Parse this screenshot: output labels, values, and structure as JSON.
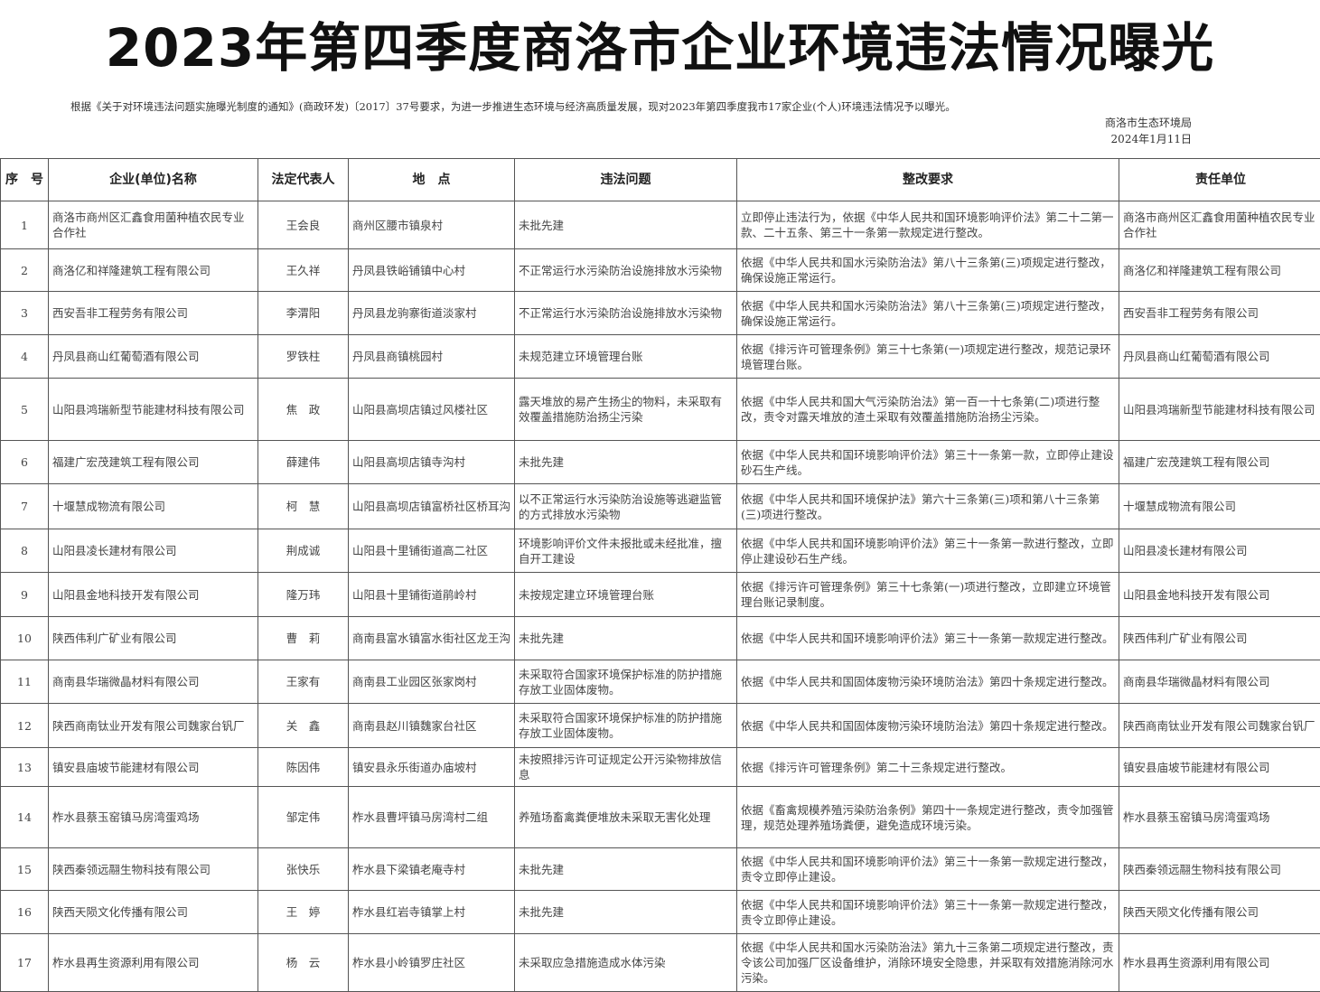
{
  "title": "2023年第四季度商洛市企业环境违法情况曝光",
  "intro": "根据《关于对环境违法问题实施曝光制度的通知》(商政环发)〔2017〕37号要求，为进一步推进生态环境与经济高质量发展，现对2023年第四季度我市17家企业(个人)环境违法情况予以曝光。",
  "org": "商洛市生态环境局",
  "date": "2024年1月11日",
  "headers": [
    "序　号",
    "企业(单位)名称",
    "法定代表人",
    "地　点",
    "违法问题",
    "整改要求",
    "责任单位"
  ],
  "rows": [
    [
      "1",
      "商洛市商州区汇鑫食用菌种植农民专业合作社",
      "王会良",
      "商州区腰市镇泉村",
      "未批先建",
      "立即停止违法行为，依据《中华人民共和国环境影响评价法》第二十二第一款、二十五条、第三十一条第一款规定进行整改。",
      "商洛市商州区汇鑫食用菌种植农民专业合作社"
    ],
    [
      "2",
      "商洛亿和祥隆建筑工程有限公司",
      "王久祥",
      "丹凤县铁峪铺镇中心村",
      "不正常运行水污染防治设施排放水污染物",
      "依据《中华人民共和国水污染防治法》第八十三条第(三)项规定进行整改，确保设施正常运行。",
      "商洛亿和祥隆建筑工程有限公司"
    ],
    [
      "3",
      "西安吾非工程劳务有限公司",
      "李渭阳",
      "丹凤县龙驹寨街道淡家村",
      "不正常运行水污染防治设施排放水污染物",
      "依据《中华人民共和国水污染防治法》第八十三条第(三)项规定进行整改，确保设施正常运行。",
      "西安吾非工程劳务有限公司"
    ],
    [
      "4",
      "丹凤县商山红葡萄酒有限公司",
      "罗铁柱",
      "丹凤县商镇桃园村",
      "未规范建立环境管理台账",
      "依据《排污许可管理条例》第三十七条第(一)项规定进行整改，规范记录环境管理台账。",
      "丹凤县商山红葡萄酒有限公司"
    ],
    [
      "5",
      "山阳县鸿瑞新型节能建材科技有限公司",
      "焦　政",
      "山阳县高坝店镇过风楼社区",
      "露天堆放的易产生扬尘的物料，未采取有效覆盖措施防治扬尘污染",
      "依据《中华人民共和国大气污染防治法》第一百一十七条第(二)项进行整改，责令对露天堆放的渣土采取有效覆盖措施防治扬尘污染。",
      "山阳县鸿瑞新型节能建材科技有限公司"
    ],
    [
      "6",
      "福建广宏茂建筑工程有限公司",
      "薛建伟",
      "山阳县高坝店镇寺沟村",
      "未批先建",
      "依据《中华人民共和国环境影响评价法》第三十一条第一款，立即停止建设砂石生产线。",
      "福建广宏茂建筑工程有限公司"
    ],
    [
      "7",
      "十堰慧成物流有限公司",
      "柯　慧",
      "山阳县高坝店镇富桥社区桥耳沟",
      "以不正常运行水污染防治设施等逃避监管的方式排放水污染物",
      "依据《中华人民共和国环境保护法》第六十三条第(三)项和第八十三条第(三)项进行整改。",
      "十堰慧成物流有限公司"
    ],
    [
      "8",
      "山阳县凌长建材有限公司",
      "荆成诚",
      "山阳县十里铺街道高二社区",
      "环境影响评价文件未报批或未经批准，擅自开工建设",
      "依据《中华人民共和国环境影响评价法》第三十一条第一款进行整改，立即停止建设砂石生产线。",
      "山阳县凌长建材有限公司"
    ],
    [
      "9",
      "山阳县金地科技开发有限公司",
      "隆万玮",
      "山阳县十里铺街道鹃岭村",
      "未按规定建立环境管理台账",
      "依据《排污许可管理条例》第三十七条第(一)项进行整改，立即建立环境管理台账记录制度。",
      "山阳县金地科技开发有限公司"
    ],
    [
      "10",
      "陕西伟利广矿业有限公司",
      "曹　莉",
      "商南县富水镇富水街社区龙王沟",
      "未批先建",
      "依据《中华人民共和国环境影响评价法》第三十一条第一款规定进行整改。",
      "陕西伟利广矿业有限公司"
    ],
    [
      "11",
      "商南县华瑞微晶材料有限公司",
      "王家有",
      "商南县工业园区张家岗村",
      "未采取符合国家环境保护标准的防护措施存放工业固体废物。",
      "依据《中华人民共和国固体废物污染环境防治法》第四十条规定进行整改。",
      "商南县华瑞微晶材料有限公司"
    ],
    [
      "12",
      "陕西商南钛业开发有限公司魏家台钒厂",
      "关　鑫",
      "商南县赵川镇魏家台社区",
      "未采取符合国家环境保护标准的防护措施存放工业固体废物。",
      "依据《中华人民共和国固体废物污染环境防治法》第四十条规定进行整改。",
      "陕西商南钛业开发有限公司魏家台钒厂"
    ],
    [
      "13",
      "镇安县庙坡节能建材有限公司",
      "陈因伟",
      "镇安县永乐街道办庙坡村",
      "未按照排污许可证规定公开污染物排放信息",
      "依据《排污许可管理条例》第二十三条规定进行整改。",
      "镇安县庙坡节能建材有限公司"
    ],
    [
      "14",
      "柞水县蔡玉窑镇马房湾蛋鸡场",
      "邹定伟",
      "柞水县曹坪镇马房湾村二组",
      "养殖场畜禽粪便堆放未采取无害化处理",
      "依据《畜禽规模养殖污染防治条例》第四十一条规定进行整改，责令加强管理，规范处理养殖场粪便，避免造成环境污染。",
      "柞水县蔡玉窑镇马房湾蛋鸡场"
    ],
    [
      "15",
      "陕西秦领远翮生物科技有限公司",
      "张快乐",
      "柞水县下梁镇老庵寺村",
      "未批先建",
      "依据《中华人民共和国环境影响评价法》第三十一条第一款规定进行整改，责令立即停止建设。",
      "陕西秦领远翮生物科技有限公司"
    ],
    [
      "16",
      "陕西天陨文化传播有限公司",
      "王　婷",
      "柞水县红岩寺镇掌上村",
      "未批先建",
      "依据《中华人民共和国环境影响评价法》第三十一条第一款规定进行整改，责令立即停止建设。",
      "陕西天陨文化传播有限公司"
    ],
    [
      "17",
      "柞水县再生资源利用有限公司",
      "杨　云",
      "柞水县小岭镇罗庄社区",
      "未采取应急措施造成水体污染",
      "依据《中华人民共和国水污染防治法》第九十三条第二项规定进行整改，责令该公司加强厂区设备维护，消除环境安全隐患，并采取有效措施消除河水污染。",
      "柞水县再生资源利用有限公司"
    ]
  ]
}
